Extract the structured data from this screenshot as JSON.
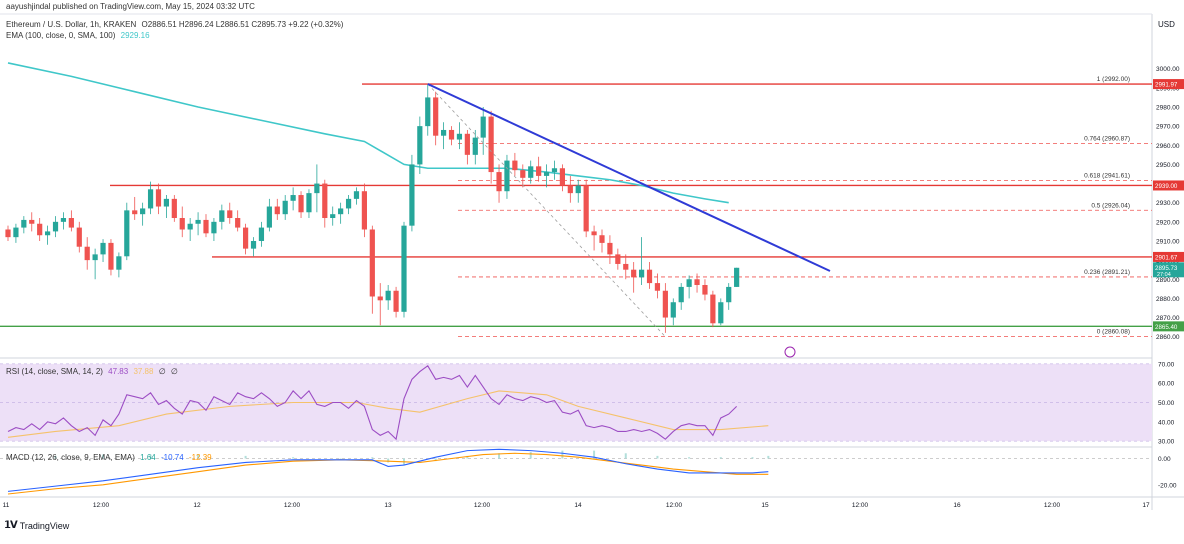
{
  "header": {
    "published": "aayushjindal published on TradingView.com, May 15, 2024 03:32 UTC",
    "symbol": "Ethereum / U.S. Dollar, 1h, KRAKEN",
    "ohlc": "O2886.51  H2896.24  L2886.51  C2895.73  +9.22 (+0.32%)",
    "ema_label": "EMA (100, close, 0, SMA, 100)",
    "ema_value": "2929.16",
    "rsi_label": "RSI (14, close, SMA, 14, 2)",
    "rsi_values": [
      "47.83",
      "37.88",
      "∅",
      "∅"
    ],
    "macd_label": "MACD (12, 26, close, 9, EMA, EMA)",
    "macd_values": [
      "1.64",
      "-10.74",
      "-12.39"
    ]
  },
  "currency": "USD",
  "footer": {
    "brand": "TradingView"
  },
  "colors": {
    "up": "#26a69a",
    "down": "#ef5350",
    "ema": "#3fc7c9",
    "trend": "#2f3bd6",
    "resistance": "#e53935",
    "support": "#43a047",
    "fib": "#ef5350",
    "rsi": "#9c4dc4",
    "rsi_ma": "#f5c26b",
    "rsi_band": "#ede0f7",
    "macd": "#2962ff",
    "signal": "#ff9800",
    "hist": "#b2dfdb"
  },
  "chart_data": [
    {
      "type": "candlestick",
      "x_tick_labels": [
        "11",
        "12:00",
        "12",
        "12:00",
        "13",
        "12:00",
        "14",
        "12:00",
        "15",
        "12:00",
        "16",
        "12:00",
        "17"
      ],
      "y_tick_labels": [
        "3000.00",
        "2990.00",
        "2980.00",
        "2970.00",
        "2960.00",
        "2950.00",
        "2940.00",
        "2930.00",
        "2920.00",
        "2910.00",
        "2900.00",
        "2890.00",
        "2880.00",
        "2870.00",
        "2860.00"
      ],
      "ylim": [
        2852,
        3015
      ],
      "candles": [
        [
          2916,
          2918,
          2910,
          2912
        ],
        [
          2912,
          2919,
          2909,
          2917
        ],
        [
          2917,
          2923,
          2914,
          2921
        ],
        [
          2921,
          2925,
          2915,
          2919
        ],
        [
          2919,
          2922,
          2910,
          2913
        ],
        [
          2913,
          2918,
          2908,
          2915
        ],
        [
          2915,
          2923,
          2912,
          2920
        ],
        [
          2920,
          2925,
          2916,
          2922
        ],
        [
          2922,
          2926,
          2915,
          2917
        ],
        [
          2917,
          2920,
          2904,
          2907
        ],
        [
          2907,
          2912,
          2895,
          2900
        ],
        [
          2900,
          2906,
          2890,
          2903
        ],
        [
          2903,
          2911,
          2899,
          2909
        ],
        [
          2909,
          2911,
          2892,
          2895
        ],
        [
          2895,
          2904,
          2891,
          2902
        ],
        [
          2902,
          2930,
          2900,
          2926
        ],
        [
          2926,
          2933,
          2921,
          2924
        ],
        [
          2924,
          2930,
          2918,
          2927
        ],
        [
          2927,
          2941,
          2924,
          2937
        ],
        [
          2937,
          2940,
          2924,
          2928
        ],
        [
          2928,
          2934,
          2922,
          2932
        ],
        [
          2932,
          2934,
          2920,
          2922
        ],
        [
          2922,
          2928,
          2912,
          2916
        ],
        [
          2916,
          2922,
          2910,
          2919
        ],
        [
          2919,
          2925,
          2913,
          2921
        ],
        [
          2921,
          2924,
          2912,
          2914
        ],
        [
          2914,
          2922,
          2910,
          2920
        ],
        [
          2920,
          2929,
          2916,
          2926
        ],
        [
          2926,
          2930,
          2919,
          2922
        ],
        [
          2922,
          2926,
          2915,
          2917
        ],
        [
          2917,
          2919,
          2903,
          2906
        ],
        [
          2906,
          2912,
          2902,
          2910
        ],
        [
          2910,
          2920,
          2907,
          2917
        ],
        [
          2917,
          2932,
          2915,
          2928
        ],
        [
          2928,
          2932,
          2921,
          2924
        ],
        [
          2924,
          2934,
          2921,
          2931
        ],
        [
          2931,
          2938,
          2926,
          2934
        ],
        [
          2934,
          2936,
          2922,
          2925
        ],
        [
          2925,
          2937,
          2922,
          2935
        ],
        [
          2935,
          2950,
          2925,
          2940
        ],
        [
          2940,
          2942,
          2917,
          2922
        ],
        [
          2922,
          2928,
          2918,
          2924
        ],
        [
          2924,
          2930,
          2919,
          2927
        ],
        [
          2927,
          2934,
          2924,
          2932
        ],
        [
          2932,
          2938,
          2929,
          2936
        ],
        [
          2936,
          2940,
          2912,
          2916
        ],
        [
          2916,
          2918,
          2872,
          2881
        ],
        [
          2881,
          2888,
          2866,
          2879
        ],
        [
          2879,
          2887,
          2874,
          2884
        ],
        [
          2884,
          2886,
          2870,
          2873
        ],
        [
          2873,
          2920,
          2870,
          2918
        ],
        [
          2918,
          2955,
          2915,
          2950
        ],
        [
          2950,
          2975,
          2945,
          2970
        ],
        [
          2970,
          2992,
          2965,
          2985
        ],
        [
          2985,
          2988,
          2960,
          2965
        ],
        [
          2965,
          2972,
          2958,
          2968
        ],
        [
          2968,
          2970,
          2960,
          2963
        ],
        [
          2963,
          2972,
          2958,
          2966
        ],
        [
          2966,
          2968,
          2950,
          2955
        ],
        [
          2955,
          2968,
          2950,
          2964
        ],
        [
          2964,
          2980,
          2955,
          2975
        ],
        [
          2975,
          2978,
          2940,
          2946
        ],
        [
          2946,
          2950,
          2930,
          2936
        ],
        [
          2936,
          2955,
          2932,
          2952
        ],
        [
          2952,
          2956,
          2944,
          2947
        ],
        [
          2947,
          2950,
          2938,
          2943
        ],
        [
          2943,
          2952,
          2940,
          2949
        ],
        [
          2949,
          2954,
          2941,
          2944
        ],
        [
          2944,
          2950,
          2938,
          2946
        ],
        [
          2946,
          2952,
          2942,
          2948
        ],
        [
          2948,
          2950,
          2936,
          2939
        ],
        [
          2939,
          2944,
          2930,
          2935
        ],
        [
          2935,
          2942,
          2930,
          2939
        ],
        [
          2939,
          2942,
          2912,
          2915
        ],
        [
          2915,
          2918,
          2905,
          2913
        ],
        [
          2913,
          2916,
          2904,
          2909
        ],
        [
          2909,
          2913,
          2898,
          2903
        ],
        [
          2903,
          2906,
          2895,
          2898
        ],
        [
          2898,
          2903,
          2890,
          2895
        ],
        [
          2895,
          2899,
          2883,
          2891
        ],
        [
          2891,
          2912,
          2887,
          2895
        ],
        [
          2895,
          2899,
          2885,
          2888
        ],
        [
          2888,
          2893,
          2880,
          2884
        ],
        [
          2884,
          2888,
          2862,
          2870
        ],
        [
          2870,
          2880,
          2866,
          2878
        ],
        [
          2878,
          2888,
          2874,
          2886
        ],
        [
          2886,
          2892,
          2880,
          2890
        ],
        [
          2890,
          2893,
          2883,
          2887
        ],
        [
          2887,
          2890,
          2879,
          2882
        ],
        [
          2882,
          2884,
          2865,
          2867
        ],
        [
          2867,
          2880,
          2866,
          2878
        ],
        [
          2878,
          2888,
          2874,
          2886
        ],
        [
          2886,
          2896,
          2886,
          2896
        ]
      ],
      "ema_line": [
        [
          0,
          3003
        ],
        [
          8,
          2996
        ],
        [
          16,
          2988
        ],
        [
          24,
          2980
        ],
        [
          32,
          2973
        ],
        [
          40,
          2966
        ],
        [
          45,
          2962
        ],
        [
          50,
          2950
        ],
        [
          53,
          2948
        ],
        [
          58,
          2948
        ],
        [
          63,
          2948
        ],
        [
          68,
          2946
        ],
        [
          72,
          2944
        ],
        [
          76,
          2942
        ],
        [
          80,
          2939
        ],
        [
          84,
          2935
        ],
        [
          88,
          2932
        ],
        [
          91,
          2930
        ]
      ],
      "trendline": [
        [
          53,
          2992
        ],
        [
          96,
          2893
        ]
      ],
      "dashed_line": [
        [
          53,
          2992
        ],
        [
          83,
          2860
        ]
      ],
      "horizontal_levels": [
        {
          "label": "2991.97",
          "value": 2991.97,
          "kind": "resistance"
        },
        {
          "label": "2939.00",
          "value": 2939.0,
          "kind": "resistance"
        },
        {
          "label": "2901.67",
          "value": 2901.67,
          "kind": "resistance"
        },
        {
          "label": "2865.40",
          "value": 2865.4,
          "kind": "support"
        }
      ],
      "price_tags": [
        {
          "label": "2895.73",
          "sub": "27:04",
          "value": 2895.73
        }
      ],
      "fib_levels": [
        {
          "label": "1 (2992.00)",
          "value": 2992.0
        },
        {
          "label": "0.764 (2960.87)",
          "value": 2960.87
        },
        {
          "label": "0.618 (2941.61)",
          "value": 2941.61
        },
        {
          "label": "0.5 (2926.04)",
          "value": 2926.04
        },
        {
          "label": "0.236 (2891.21)",
          "value": 2891.21
        },
        {
          "label": "0 (2860.08)",
          "value": 2860.08
        }
      ]
    },
    {
      "type": "line",
      "name": "RSI",
      "y_tick_labels": [
        "70.00",
        "60.00",
        "50.00",
        "40.00",
        "30.00"
      ],
      "ylim": [
        28,
        72
      ],
      "band": [
        30,
        70
      ],
      "values": [
        35,
        37,
        36,
        39,
        36,
        40,
        39,
        42,
        38,
        35,
        37,
        33,
        41,
        38,
        44,
        54,
        53,
        52,
        55,
        49,
        51,
        47,
        44,
        51,
        50,
        46,
        53,
        51,
        49,
        55,
        53,
        52,
        55,
        52,
        48,
        50,
        56,
        52,
        56,
        49,
        48,
        50,
        50,
        47,
        51,
        48,
        36,
        33,
        35,
        31,
        52,
        62,
        66,
        69,
        62,
        63,
        62,
        64,
        58,
        64,
        58,
        52,
        49,
        54,
        52,
        51,
        53,
        52,
        50,
        51,
        45,
        44,
        46,
        38,
        37,
        38,
        37,
        35,
        35,
        36,
        35,
        36,
        34,
        31,
        35,
        38,
        39,
        38,
        38,
        33,
        42,
        44,
        48
      ],
      "ma": [
        [
          0,
          32
        ],
        [
          6,
          35
        ],
        [
          14,
          38
        ],
        [
          20,
          44
        ],
        [
          28,
          48
        ],
        [
          36,
          50
        ],
        [
          44,
          50
        ],
        [
          48,
          47
        ],
        [
          52,
          45
        ],
        [
          58,
          52
        ],
        [
          62,
          56
        ],
        [
          68,
          54
        ],
        [
          72,
          48
        ],
        [
          78,
          42
        ],
        [
          84,
          36
        ],
        [
          90,
          36
        ],
        [
          96,
          38
        ]
      ]
    },
    {
      "type": "line",
      "name": "MACD",
      "y_tick_labels": [
        "0.00",
        "-20.00"
      ],
      "ylim": [
        -27,
        8
      ],
      "macd": [
        [
          0,
          -25
        ],
        [
          6,
          -21
        ],
        [
          12,
          -17
        ],
        [
          18,
          -12
        ],
        [
          24,
          -7
        ],
        [
          30,
          -3
        ],
        [
          36,
          -1
        ],
        [
          42,
          -1
        ],
        [
          46,
          -1
        ],
        [
          48,
          -6
        ],
        [
          50,
          -5
        ],
        [
          54,
          1
        ],
        [
          58,
          6
        ],
        [
          62,
          7
        ],
        [
          66,
          6
        ],
        [
          70,
          4
        ],
        [
          74,
          1
        ],
        [
          78,
          -4
        ],
        [
          82,
          -8
        ],
        [
          86,
          -11
        ],
        [
          90,
          -11
        ],
        [
          94,
          -11
        ],
        [
          96,
          -10
        ]
      ],
      "signal": [
        [
          0,
          -27
        ],
        [
          6,
          -23
        ],
        [
          12,
          -20
        ],
        [
          18,
          -15
        ],
        [
          24,
          -10
        ],
        [
          30,
          -5
        ],
        [
          36,
          -2
        ],
        [
          42,
          -1
        ],
        [
          48,
          -2
        ],
        [
          52,
          -3
        ],
        [
          56,
          0
        ],
        [
          60,
          3
        ],
        [
          64,
          4
        ],
        [
          68,
          3
        ],
        [
          72,
          1
        ],
        [
          76,
          -2
        ],
        [
          80,
          -5
        ],
        [
          84,
          -8
        ],
        [
          88,
          -10
        ],
        [
          92,
          -12
        ],
        [
          96,
          -12
        ]
      ]
    }
  ]
}
